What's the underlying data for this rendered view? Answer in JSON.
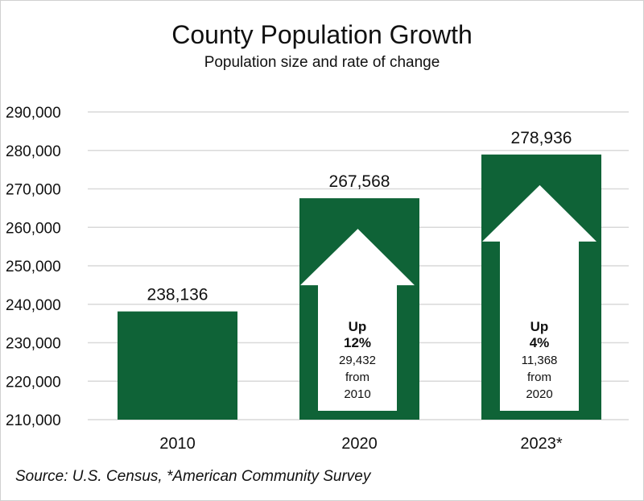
{
  "chart_data": {
    "type": "bar",
    "title": "County Population Growth",
    "subtitle": "Population size and rate of change",
    "categories": [
      "2010",
      "2020",
      "2023*"
    ],
    "values": [
      238136,
      267568,
      278936
    ],
    "data_labels": [
      "238,136",
      "267,568",
      "278,936"
    ],
    "ylim": [
      210000,
      290000
    ],
    "yticks": [
      210000,
      220000,
      230000,
      240000,
      250000,
      260000,
      270000,
      280000,
      290000
    ],
    "ytick_labels": [
      "210,000",
      "220,000",
      "230,000",
      "240,000",
      "250,000",
      "260,000",
      "270,000",
      "280,000",
      "290,000"
    ],
    "grid": true,
    "legend": "none",
    "bar_color": "#0f6337",
    "annotations": [
      null,
      {
        "icon": "up-arrow-icon",
        "line1": "Up",
        "line2": "12%",
        "line3": "29,432",
        "line4": "from",
        "line5": "2010"
      },
      {
        "icon": "up-arrow-icon",
        "line1": "Up",
        "line2": "4%",
        "line3": "11,368",
        "line4": "from",
        "line5": "2020"
      }
    ],
    "source": "Source: U.S. Census, *American Community Survey"
  }
}
